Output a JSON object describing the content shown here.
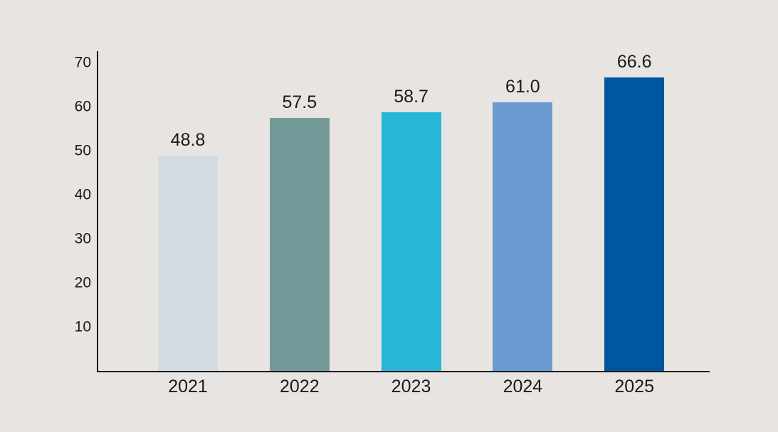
{
  "page": {
    "background_color": "#e8e4e1",
    "text_color": "#1a1a1a",
    "axis_color": "#1c1c1c"
  },
  "chart_data": {
    "type": "bar",
    "title": "",
    "xlabel": "",
    "ylabel": "",
    "categories": [
      "2021",
      "2022",
      "2023",
      "2024",
      "2025"
    ],
    "values": [
      48.8,
      57.5,
      58.7,
      61.0,
      66.6
    ],
    "value_labels": [
      "48.8",
      "57.5",
      "58.7",
      "61.0",
      "66.6"
    ],
    "bar_colors": [
      "#d3dce3",
      "#739a98",
      "#28b6d8",
      "#6c9bd2",
      "#00579f"
    ],
    "ylim": [
      0,
      70
    ],
    "yticks": [
      10,
      20,
      30,
      40,
      50,
      60,
      70
    ],
    "grid": false,
    "legend_position": "none"
  }
}
